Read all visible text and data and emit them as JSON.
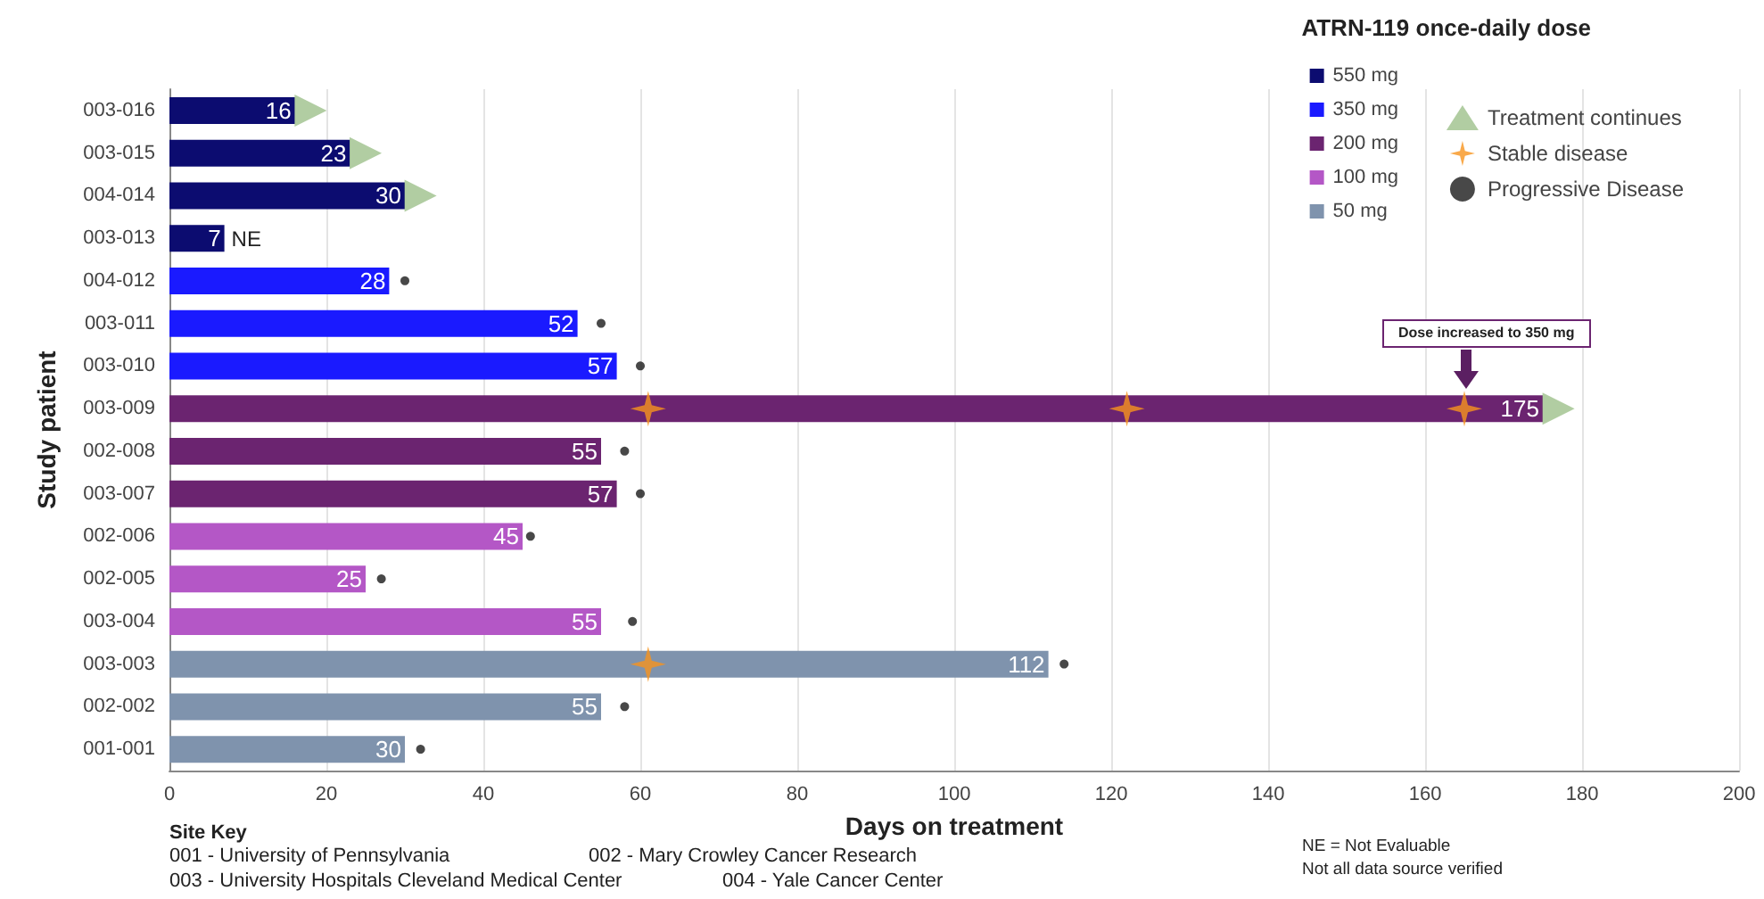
{
  "chart_data": {
    "type": "bar",
    "orientation": "horizontal",
    "xlabel": "Days on treatment",
    "ylabel": "Study patient",
    "legend_title": "ATRN-119 once-daily dose",
    "categories": [
      "003-016",
      "003-015",
      "004-014",
      "003-013",
      "004-012",
      "003-011",
      "003-010",
      "003-009",
      "002-008",
      "003-007",
      "002-006",
      "002-005",
      "003-004",
      "003-003",
      "002-002",
      "001-001"
    ],
    "series": [
      {
        "name": "550 mg",
        "color": "#0c0c70",
        "values": [
          16,
          23,
          30,
          7,
          null,
          null,
          null,
          null,
          null,
          null,
          null,
          null,
          null,
          null,
          null,
          null
        ],
        "value_labels": [
          "16",
          "23",
          "30",
          "7",
          null,
          null,
          null,
          null,
          null,
          null,
          null,
          null,
          null,
          null,
          null,
          null
        ]
      },
      {
        "name": "350 mg",
        "color": "#1a1aff",
        "values": [
          null,
          null,
          null,
          null,
          28,
          52,
          57,
          null,
          null,
          null,
          null,
          null,
          null,
          null,
          null,
          null
        ],
        "value_labels": [
          null,
          null,
          null,
          null,
          "28",
          "52",
          "57",
          null,
          null,
          null,
          null,
          null,
          null,
          null,
          null,
          null
        ]
      },
      {
        "name": "200 mg",
        "color": "#6b2470",
        "values": [
          null,
          null,
          null,
          null,
          null,
          null,
          null,
          175,
          55,
          57,
          null,
          null,
          null,
          null,
          null,
          null
        ],
        "value_labels": [
          null,
          null,
          null,
          null,
          null,
          null,
          null,
          "175",
          "55",
          "57",
          null,
          null,
          null,
          null,
          null,
          null
        ]
      },
      {
        "name": "100 mg",
        "color": "#b457c6",
        "values": [
          null,
          null,
          null,
          null,
          null,
          null,
          null,
          null,
          null,
          null,
          45,
          25,
          55,
          null,
          null,
          null
        ],
        "value_labels": [
          null,
          null,
          null,
          null,
          null,
          null,
          null,
          null,
          null,
          null,
          "45",
          "25",
          "55",
          null,
          null,
          null
        ]
      },
      {
        "name": "50 mg",
        "color": "#7f93ad",
        "values": [
          null,
          null,
          null,
          null,
          null,
          null,
          null,
          null,
          null,
          null,
          null,
          null,
          null,
          112,
          55,
          30
        ],
        "value_labels": [
          null,
          null,
          null,
          null,
          null,
          null,
          null,
          null,
          null,
          null,
          null,
          null,
          null,
          "112",
          "55",
          "30"
        ]
      },
      {
        "name": "Treatment continues",
        "type": "scatter",
        "marker": "triangle",
        "color": "#9dc08b",
        "x": [
          "003-016",
          "003-015",
          "004-014",
          "003-009"
        ],
        "values": [
          18,
          25,
          32,
          177
        ]
      },
      {
        "name": "Stable disease",
        "type": "scatter",
        "marker": "star",
        "color": "#f7941d",
        "x": [
          "003-009",
          "003-009",
          "003-009",
          "003-003"
        ],
        "values": [
          61,
          122,
          165,
          61
        ]
      },
      {
        "name": "Progressive Disease",
        "type": "scatter",
        "marker": "circle",
        "color": "#1a1a1a",
        "x": [
          "004-012",
          "003-011",
          "003-010",
          "002-008",
          "003-007",
          "002-006",
          "002-005",
          "003-004",
          "003-003",
          "002-002",
          "001-001"
        ],
        "values": [
          30,
          55,
          60,
          58,
          60,
          46,
          27,
          59,
          114,
          58,
          32
        ]
      }
    ],
    "xlim": [
      0,
      200
    ],
    "xticks": [
      0,
      20,
      40,
      60,
      80,
      100,
      120,
      140,
      160,
      180,
      200
    ],
    "grid": "x",
    "legend": "top right",
    "annotations": [
      {
        "text": "NE",
        "x": 7,
        "y": "003-013"
      },
      "Dose increased to 350 mg",
      "Site Key",
      "001 -  University of Pennsylvania",
      "002 -  Mary Crowley Cancer Research",
      "003 -  University Hospitals Cleveland Medical Center",
      "004 - Yale Cancer Center",
      "NE = Not Evaluable",
      "Not all data source verified"
    ]
  }
}
